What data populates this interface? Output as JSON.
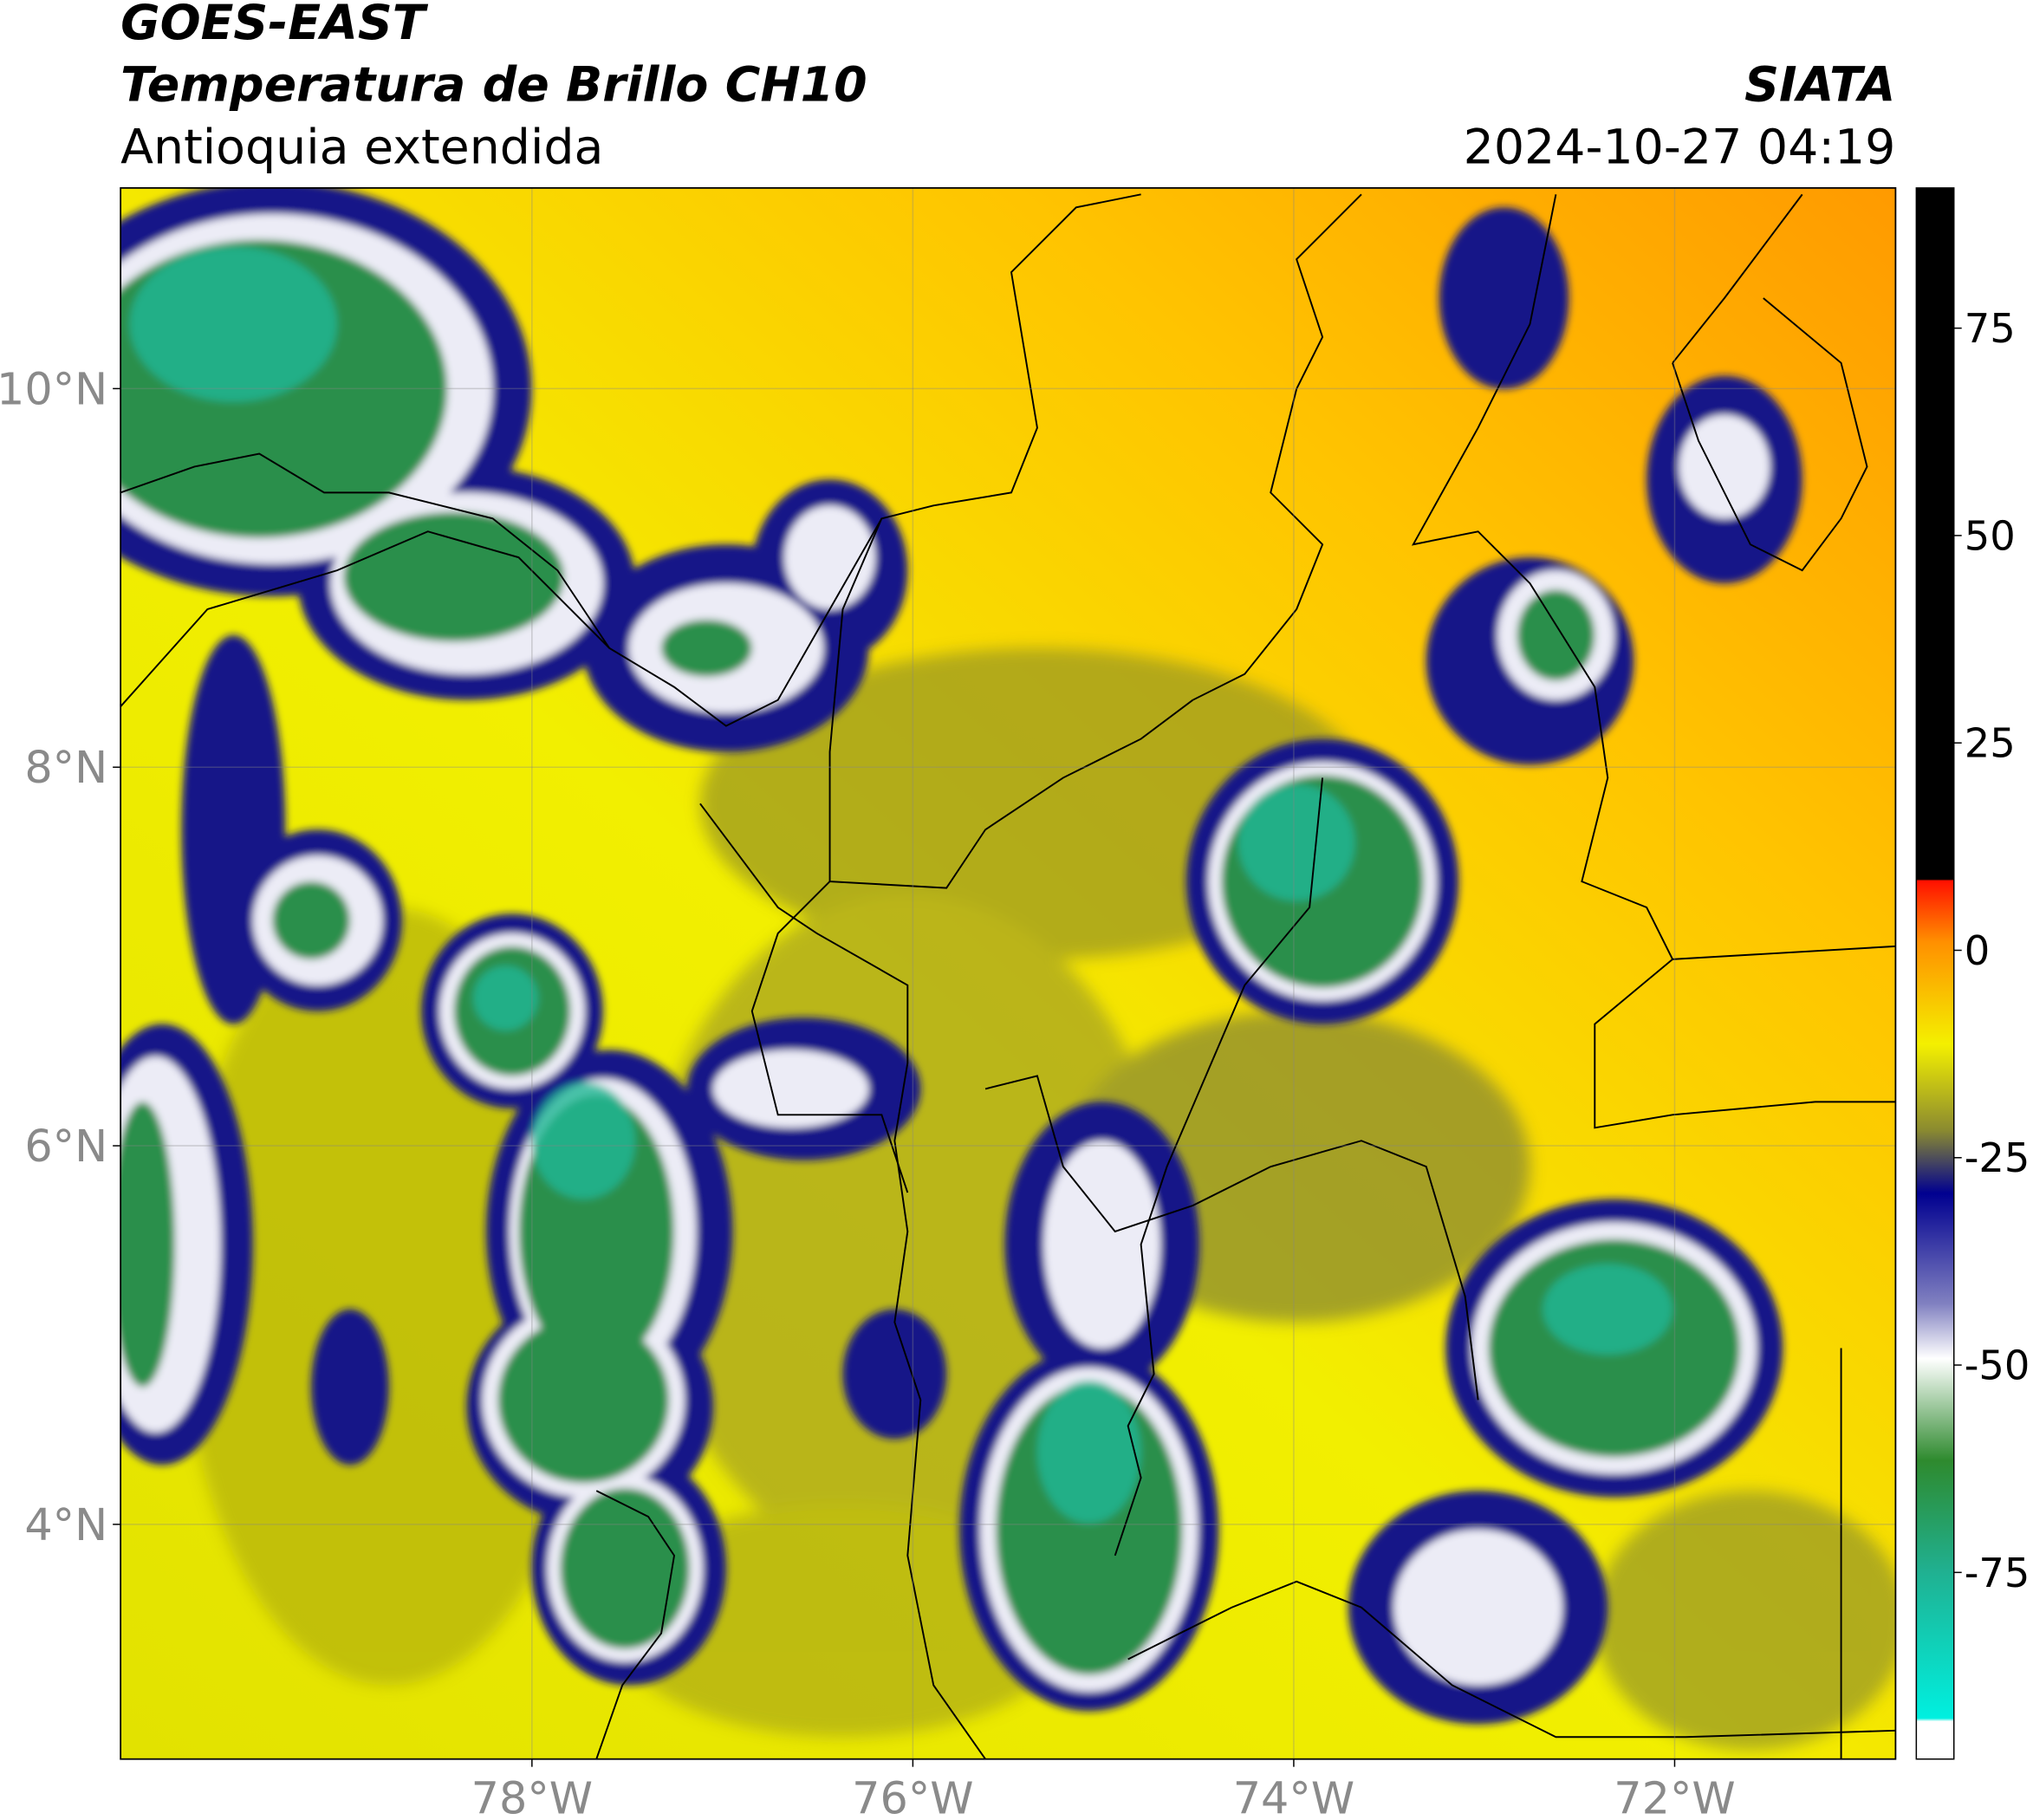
{
  "header": {
    "title": "GOES-EAST",
    "subtitle": "Temperatura de Brillo CH10",
    "region": "Antioquia extendida",
    "source": "SIATA",
    "datetime": "2024-10-27 04:19"
  },
  "map": {
    "xlim": [
      -80.16,
      -70.84
    ],
    "ylim": [
      2.76,
      11.06
    ],
    "xticks": [
      {
        "value": -78,
        "label": "78°W"
      },
      {
        "value": -76,
        "label": "76°W"
      },
      {
        "value": -74,
        "label": "74°W"
      },
      {
        "value": -72,
        "label": "72°W"
      }
    ],
    "yticks": [
      {
        "value": 4,
        "label": "4°N"
      },
      {
        "value": 6,
        "label": "6°N"
      },
      {
        "value": 8,
        "label": "8°N"
      },
      {
        "value": 10,
        "label": "10°N"
      }
    ],
    "grid": true
  },
  "colorbar": {
    "lim": [
      -97.5,
      91.9
    ],
    "ticks": [
      -75,
      -50,
      -25,
      0,
      25,
      50,
      75
    ]
  }
}
